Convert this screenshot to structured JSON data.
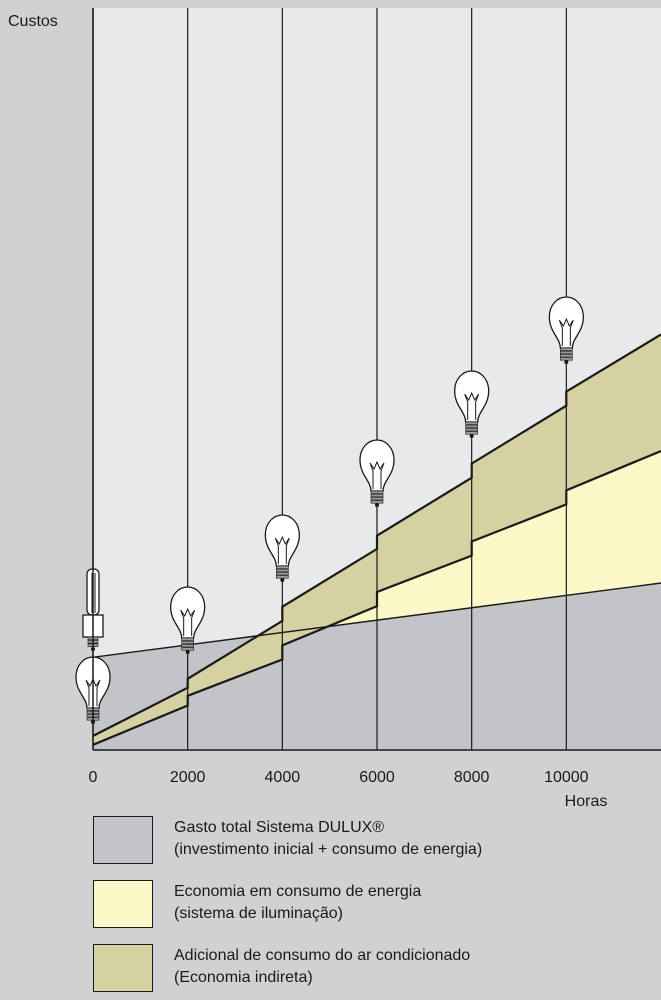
{
  "colors": {
    "background": "#d0d1d3",
    "plot_background": "#e8e9eb",
    "dulux_area": "#c3c4c7",
    "energy_savings": "#fdf8c7",
    "ac_savings": "#d5d1a3",
    "line": "#1a1a1a"
  },
  "chart_data": {
    "type": "area",
    "title": "",
    "ylabel": "Custos",
    "xlabel": "Horas",
    "x_ticks": [
      0,
      2000,
      4000,
      6000,
      8000,
      10000
    ],
    "xlim": [
      0,
      12000
    ],
    "y_ticks_shown": false,
    "grid": "vertical",
    "units_note": "relative cost units (y axis unlabeled; 0 = baseline, top of plot = 100)",
    "ylim": [
      0,
      100
    ],
    "series": [
      {
        "name": "Gasto total Sistema DULUX® (investimento inicial + consumo de energia)",
        "boundary": "straight line",
        "x": [
          0,
          12000
        ],
        "y": [
          12.5,
          22.5
        ]
      },
      {
        "name": "Economia em consumo de energia (sistema de iluminação)",
        "boundary": "lower stepped line (incandescent energy cost)",
        "x": [
          0,
          2000,
          2000,
          4000,
          4000,
          6000,
          6000,
          8000,
          8000,
          10000,
          10000,
          12000
        ],
        "y": [
          0.7,
          6.0,
          7.3,
          12.2,
          14.1,
          19.4,
          21.3,
          26.2,
          28.1,
          33.1,
          35.0,
          40.3
        ]
      },
      {
        "name": "Adicional de consumo do ar condicionado (Economia indireta)",
        "boundary": "upper stepped line (incandescent energy + air conditioning)",
        "x": [
          0,
          2000,
          2000,
          4000,
          4000,
          6000,
          6000,
          8000,
          8000,
          10000,
          10000,
          12000
        ],
        "y": [
          1.9,
          8.4,
          9.6,
          17.4,
          19.3,
          27.1,
          28.9,
          36.7,
          38.6,
          46.4,
          48.3,
          56.0
        ]
      }
    ],
    "markers": [
      {
        "type": "cfl-lamp",
        "x": 0
      },
      {
        "type": "incandescent-bulb",
        "x": 0
      },
      {
        "type": "incandescent-bulb",
        "x": 2000
      },
      {
        "type": "incandescent-bulb",
        "x": 4000
      },
      {
        "type": "incandescent-bulb",
        "x": 6000
      },
      {
        "type": "incandescent-bulb",
        "x": 8000
      },
      {
        "type": "incandescent-bulb",
        "x": 10000
      }
    ]
  },
  "legend": [
    {
      "color": "#c3c4c7",
      "line1": "Gasto total Sistema DULUX®",
      "line2": "(investimento inicial + consumo de energia)"
    },
    {
      "color": "#fdf8c7",
      "line1": "Economia em consumo de energia",
      "line2": "(sistema de iluminação)"
    },
    {
      "color": "#d5d1a3",
      "line1": "Adicional de consumo do ar condicionado",
      "line2": "(Economia indireta)"
    }
  ]
}
